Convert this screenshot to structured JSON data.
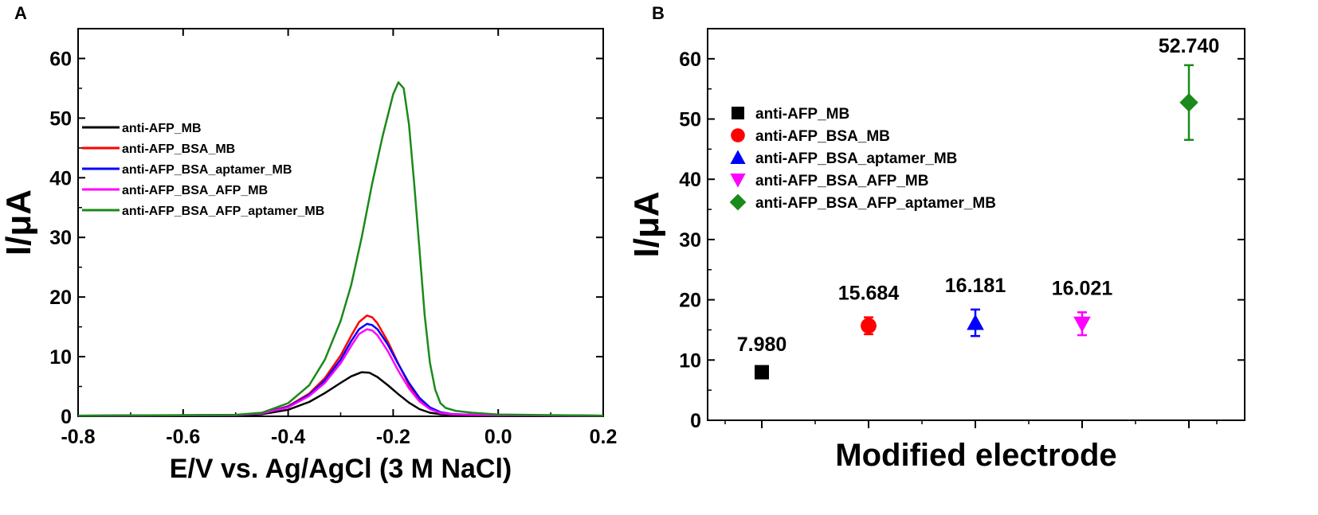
{
  "panels": {
    "a_label": "A",
    "b_label": "B"
  },
  "chart_data": [
    {
      "type": "line",
      "panel": "A",
      "xlabel": "E/V vs. Ag/AgCl (3 M NaCl)",
      "ylabel": "I/μA",
      "xlim": [
        -0.8,
        0.2
      ],
      "ylim": [
        0,
        65
      ],
      "xticks": [
        -0.8,
        -0.6,
        -0.4,
        -0.2,
        0.0,
        0.2
      ],
      "xtick_labels": [
        "-0.8",
        "-0.6",
        "-0.4",
        "-0.2",
        "0.0",
        "0.2"
      ],
      "yticks": [
        0,
        10,
        20,
        30,
        40,
        50,
        60
      ],
      "ytick_labels": [
        "0",
        "10",
        "20",
        "30",
        "40",
        "50",
        "60"
      ],
      "grid": false,
      "legend_position": "upper-left",
      "series": [
        {
          "name": "anti-AFP_MB",
          "color": "#000000",
          "x": [
            -0.8,
            -0.5,
            -0.45,
            -0.4,
            -0.36,
            -0.33,
            -0.3,
            -0.28,
            -0.26,
            -0.245,
            -0.23,
            -0.21,
            -0.19,
            -0.17,
            -0.15,
            -0.13,
            -0.11,
            -0.09,
            -0.05,
            0.0,
            0.2
          ],
          "y": [
            0.1,
            0.15,
            0.35,
            1.1,
            2.4,
            3.9,
            5.6,
            6.7,
            7.4,
            7.3,
            6.6,
            5.2,
            3.7,
            2.3,
            1.2,
            0.6,
            0.35,
            0.25,
            0.2,
            0.15,
            0.1
          ]
        },
        {
          "name": "anti-AFP_BSA_MB",
          "color": "#ff0000",
          "x": [
            -0.8,
            -0.5,
            -0.45,
            -0.4,
            -0.36,
            -0.33,
            -0.3,
            -0.28,
            -0.265,
            -0.25,
            -0.24,
            -0.23,
            -0.21,
            -0.19,
            -0.17,
            -0.15,
            -0.13,
            -0.11,
            -0.09,
            -0.05,
            0.0,
            0.2
          ],
          "y": [
            0.1,
            0.2,
            0.5,
            1.7,
            3.8,
            6.4,
            10.2,
            13.5,
            15.8,
            16.9,
            16.6,
            15.6,
            12.5,
            8.8,
            5.3,
            2.8,
            1.3,
            0.6,
            0.35,
            0.25,
            0.2,
            0.1
          ]
        },
        {
          "name": "anti-AFP_BSA_aptamer_MB",
          "color": "#0000ff",
          "x": [
            -0.8,
            -0.5,
            -0.45,
            -0.4,
            -0.36,
            -0.33,
            -0.3,
            -0.28,
            -0.265,
            -0.25,
            -0.24,
            -0.23,
            -0.21,
            -0.19,
            -0.17,
            -0.15,
            -0.13,
            -0.11,
            -0.09,
            -0.05,
            0.0,
            0.2
          ],
          "y": [
            0.1,
            0.2,
            0.5,
            1.6,
            3.6,
            6.0,
            9.5,
            12.6,
            14.6,
            15.5,
            15.3,
            14.6,
            12.0,
            8.7,
            5.6,
            3.1,
            1.5,
            0.7,
            0.4,
            0.25,
            0.2,
            0.1
          ]
        },
        {
          "name": "anti-AFP_BSA_AFP_MB",
          "color": "#ff00ff",
          "x": [
            -0.8,
            -0.5,
            -0.45,
            -0.4,
            -0.36,
            -0.33,
            -0.3,
            -0.28,
            -0.265,
            -0.25,
            -0.24,
            -0.23,
            -0.21,
            -0.19,
            -0.17,
            -0.15,
            -0.13,
            -0.11,
            -0.09,
            -0.05,
            0.0,
            0.2
          ],
          "y": [
            0.1,
            0.2,
            0.5,
            1.5,
            3.4,
            5.6,
            8.9,
            11.8,
            13.8,
            14.6,
            14.4,
            13.6,
            10.9,
            7.6,
            4.7,
            2.5,
            1.2,
            0.55,
            0.35,
            0.25,
            0.2,
            0.1
          ]
        },
        {
          "name": "anti-AFP_BSA_AFP_aptamer_MB",
          "color": "#1a8a1a",
          "x": [
            -0.8,
            -0.5,
            -0.45,
            -0.4,
            -0.36,
            -0.33,
            -0.3,
            -0.28,
            -0.26,
            -0.24,
            -0.22,
            -0.2,
            -0.19,
            -0.18,
            -0.17,
            -0.16,
            -0.15,
            -0.14,
            -0.13,
            -0.12,
            -0.11,
            -0.1,
            -0.08,
            -0.05,
            0.0,
            0.2
          ],
          "y": [
            0.1,
            0.25,
            0.6,
            2.2,
            5.2,
            9.5,
            16.0,
            22.0,
            30.0,
            39.0,
            47.0,
            54.0,
            56.0,
            55.0,
            49.0,
            39.0,
            28.0,
            17.0,
            9.0,
            4.5,
            2.2,
            1.4,
            0.9,
            0.6,
            0.3,
            0.1
          ]
        }
      ]
    },
    {
      "type": "scatter",
      "panel": "B",
      "xlabel": "Modified electrode",
      "ylabel": "I/μA",
      "ylim": [
        0,
        65
      ],
      "yticks": [
        0,
        10,
        20,
        30,
        40,
        50,
        60
      ],
      "ytick_labels": [
        "0",
        "10",
        "20",
        "30",
        "40",
        "50",
        "60"
      ],
      "xlim": [
        0,
        5
      ],
      "grid": false,
      "legend_position": "upper-left",
      "series": [
        {
          "name": "anti-AFP_MB",
          "color": "#000000",
          "marker": "square",
          "x": 1,
          "value": 7.98,
          "error": 0.6,
          "label": "7.980"
        },
        {
          "name": "anti-AFP_BSA_MB",
          "color": "#ff0000",
          "marker": "circle",
          "x": 2,
          "value": 15.684,
          "error": 1.4,
          "label": "15.684"
        },
        {
          "name": "anti-AFP_BSA_aptamer_MB",
          "color": "#0000ff",
          "marker": "triangle-up",
          "x": 3,
          "value": 16.181,
          "error": 2.2,
          "label": "16.181"
        },
        {
          "name": "anti-AFP_BSA_AFP_MB",
          "color": "#ff00ff",
          "marker": "triangle-down",
          "x": 4,
          "value": 16.021,
          "error": 1.9,
          "label": "16.021"
        },
        {
          "name": "anti-AFP_BSA_AFP_aptamer_MB",
          "color": "#1a8a1a",
          "marker": "diamond",
          "x": 5,
          "value": 52.74,
          "error": 6.2,
          "label": "52.740"
        }
      ]
    }
  ]
}
